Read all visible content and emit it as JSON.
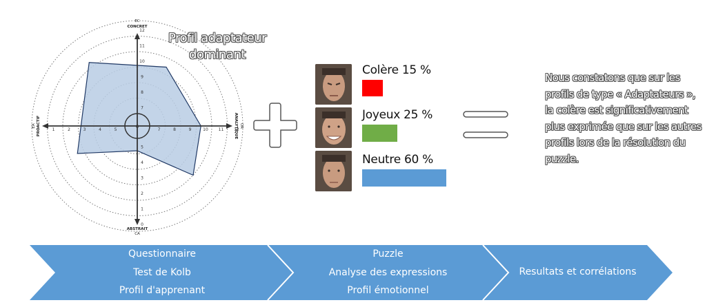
{
  "radar": {
    "axis_top_code": "EC",
    "axis_top": "CONCRET",
    "axis_bottom": "ABSTRAIT",
    "axis_bottom_code": "CA",
    "axis_left": "PROACTIF",
    "axis_left_code": "EA",
    "axis_right": "ANALYTIQUE",
    "axis_right_code": "OR",
    "center_label": "6",
    "scale_up": [
      "7",
      "8",
      "9",
      "10",
      "11",
      "12"
    ],
    "scale_down": [
      "5",
      "4",
      "3",
      "2",
      "1",
      "0"
    ],
    "scale_left": [
      "5",
      "4",
      "3",
      "2",
      "1",
      "0"
    ],
    "scale_right": [
      "7",
      "8",
      "9",
      "10",
      "11",
      "12"
    ],
    "profile_polygon": {
      "concret": 9.5,
      "analytique": 9.8,
      "abstrait": 7.3,
      "proactif": 6.8,
      "top_left": [
        3.2,
        9.8
      ],
      "bottom_right": [
        9.3,
        10.3
      ]
    },
    "profile_color": "#b8cce4",
    "title": "Profil adaptateur dominant"
  },
  "emotions": [
    {
      "label": "Colère 15 %",
      "percent": 15,
      "color": "#ff0000"
    },
    {
      "label": "Joyeux 25 %",
      "percent": 25,
      "color": "#70ad47"
    },
    {
      "label": "Neutre 60 %",
      "percent": 60,
      "color": "#5b9bd5"
    }
  ],
  "conclusion": "Nous constatons que sur les profils de type « Adaptateurs », la colère est significativement plus exprimée que sur les autres profils lors de la résolution du puzzle.",
  "steps": [
    {
      "lines": [
        "Questionnaire",
        "Test de Kolb",
        "Profil d'apprenant"
      ]
    },
    {
      "lines": [
        "Puzzle",
        "Analyse des expressions",
        "Profil émotionnel"
      ]
    },
    {
      "lines": [
        "Resultats et corrélations"
      ]
    }
  ],
  "colors": {
    "chevron": "#5b9bd5"
  }
}
